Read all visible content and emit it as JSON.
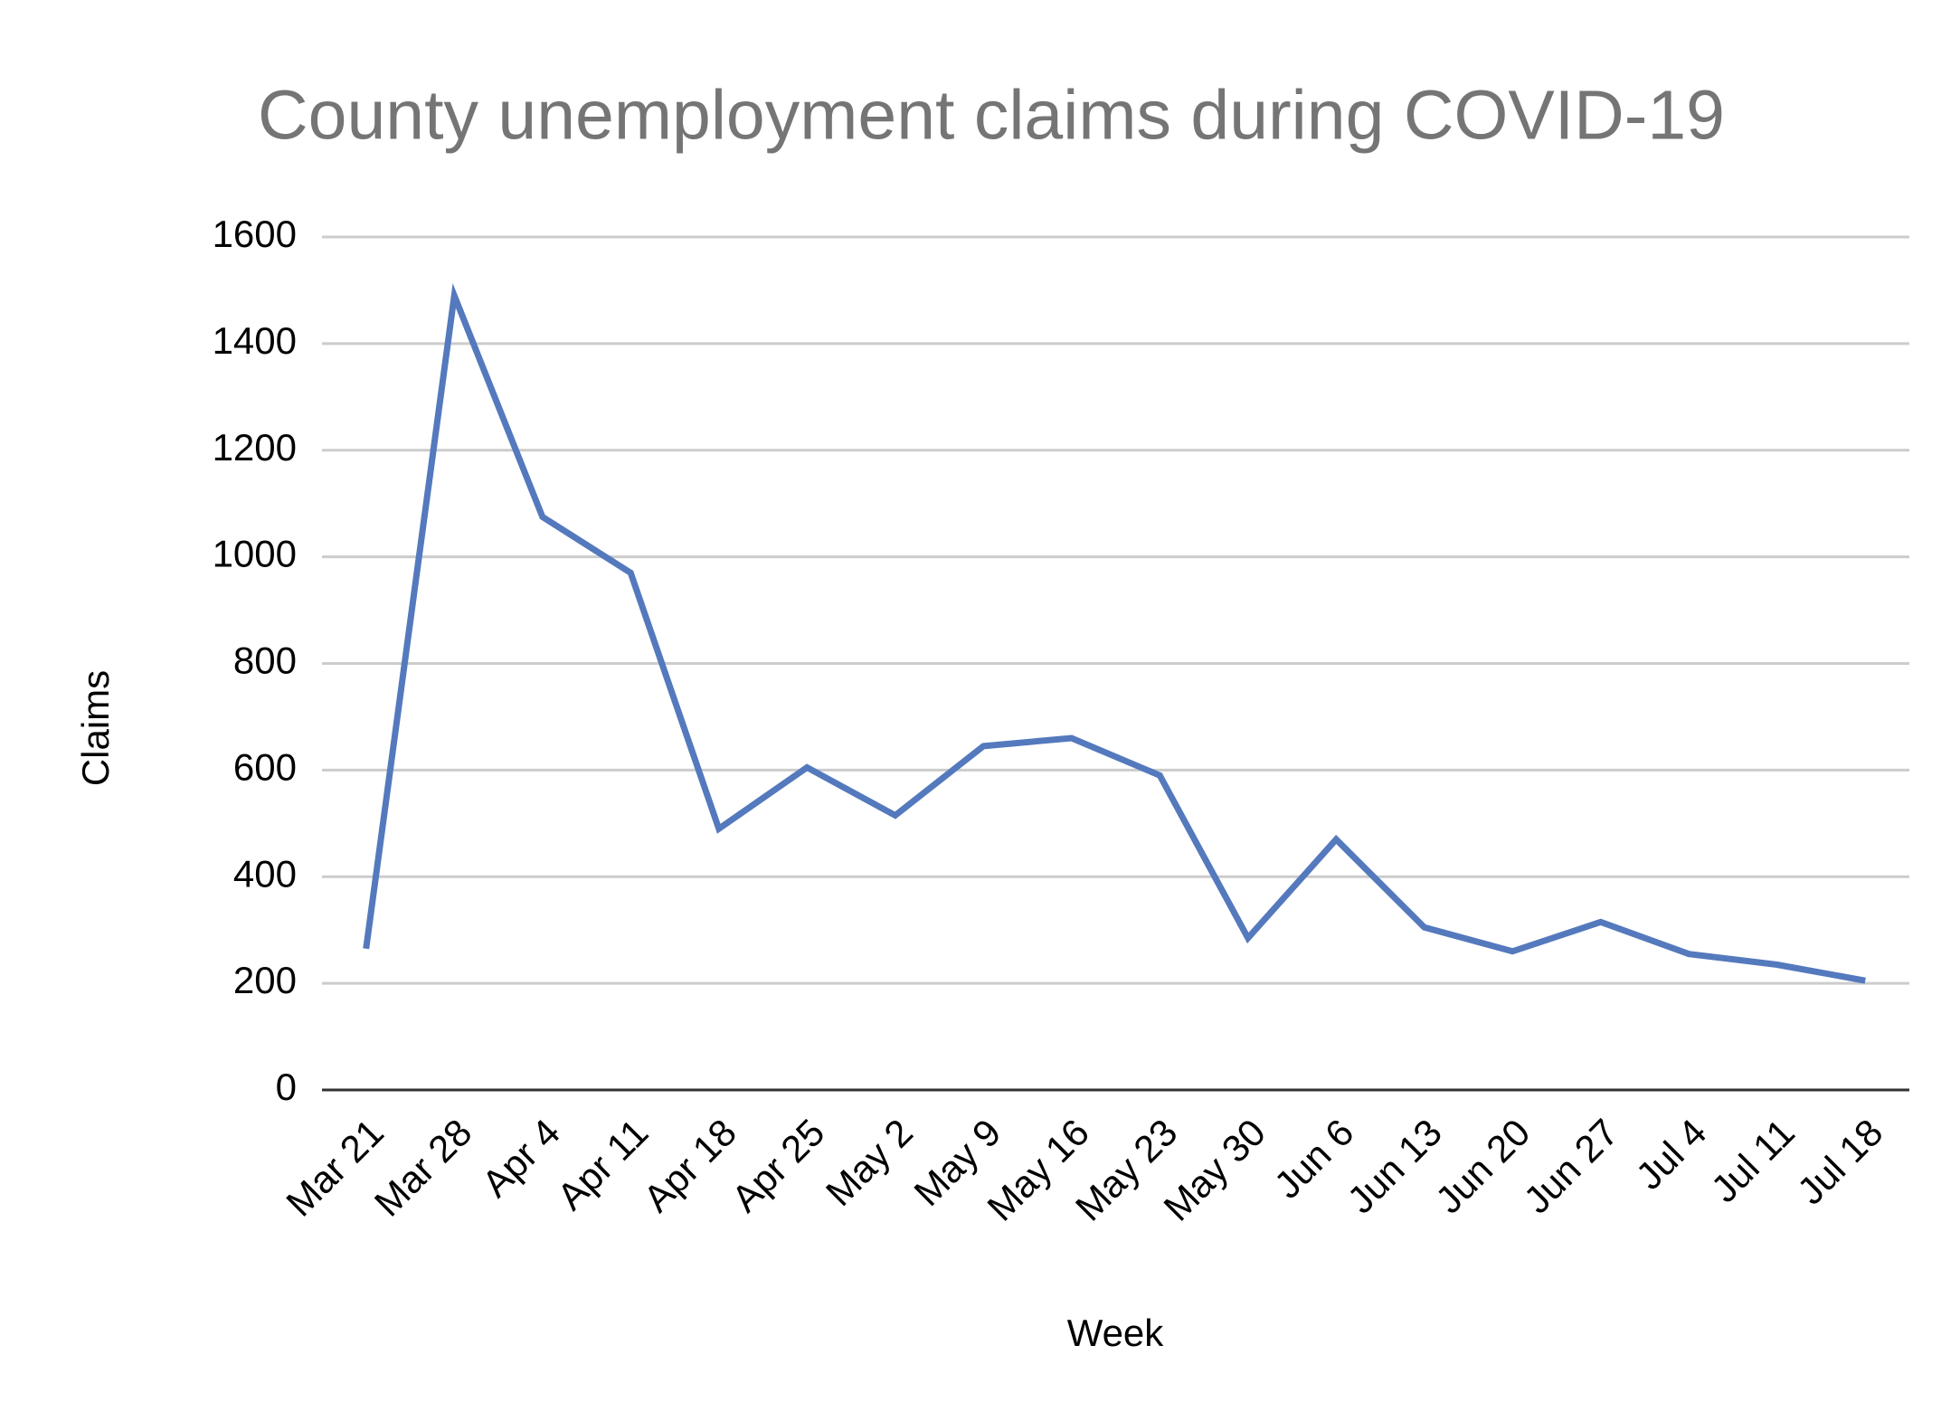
{
  "chart_data": {
    "type": "line",
    "title": "County unemployment claims during COVID-19",
    "xlabel": "Week",
    "ylabel": "Claims",
    "categories": [
      "Mar 21",
      "Mar 28",
      "Apr 4",
      "Apr 11",
      "Apr 18",
      "Apr 25",
      "May 2",
      "May 9",
      "May 16",
      "May 23",
      "May 30",
      "Jun 6",
      "Jun 13",
      "Jun 20",
      "Jun 27",
      "Jul 4",
      "Jul 11",
      "Jul 18"
    ],
    "series": [
      {
        "name": "Claims",
        "color": "#5479bd",
        "values": [
          265,
          1490,
          1075,
          970,
          490,
          605,
          515,
          645,
          660,
          590,
          285,
          470,
          305,
          260,
          315,
          255,
          235,
          205
        ]
      }
    ],
    "ylim": [
      0,
      1600
    ],
    "yticks": [
      0,
      200,
      400,
      600,
      800,
      1000,
      1200,
      1400,
      1600
    ],
    "grid": true
  }
}
